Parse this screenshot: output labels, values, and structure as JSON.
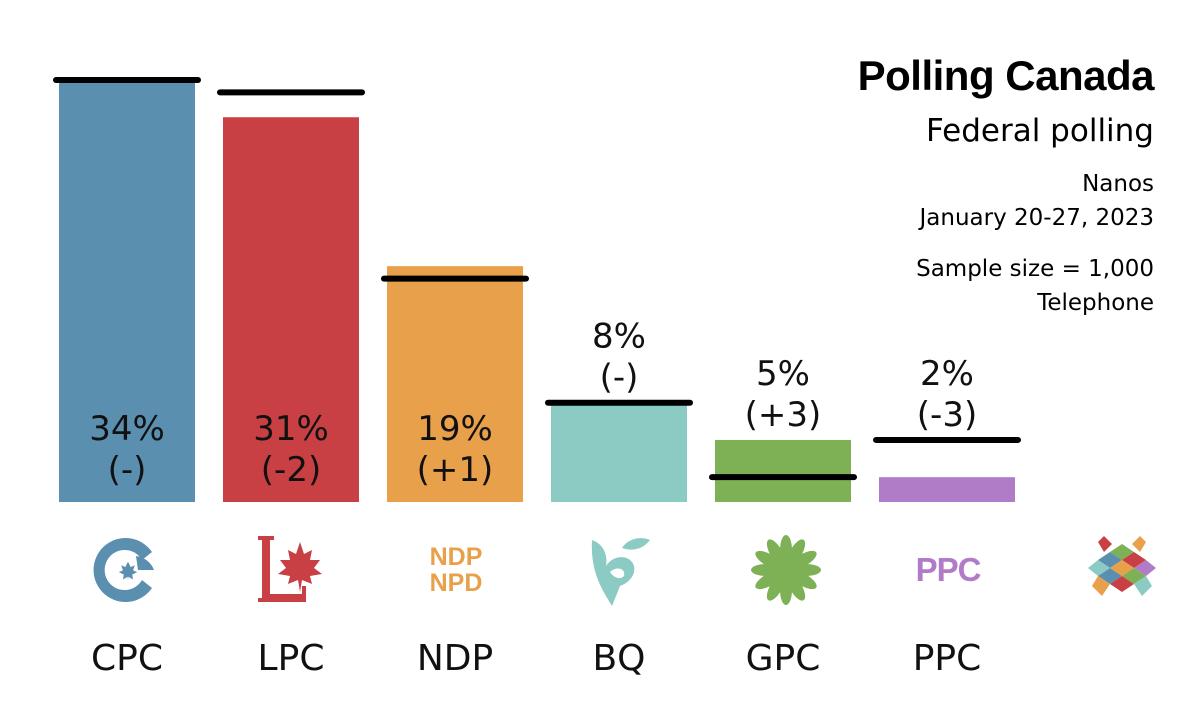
{
  "header": {
    "title": "Polling Canada",
    "subtitle": "Federal polling",
    "pollster": "Nanos",
    "dates": "January 20-27, 2023",
    "sample": "Sample size = 1,000",
    "method": "Telephone"
  },
  "chart_data": {
    "type": "bar",
    "categories": [
      "CPC",
      "LPC",
      "NDP",
      "BQ",
      "GPC",
      "PPC"
    ],
    "values": [
      34,
      31,
      19,
      8,
      5,
      2
    ],
    "previous_values": [
      34,
      33,
      18,
      8,
      2,
      5
    ],
    "change_labels": [
      "(-)",
      "(-2)",
      "(+1)",
      "(-)",
      "(+3)",
      "(-3)"
    ],
    "value_labels": [
      "34%",
      "31%",
      "19%",
      "8%",
      "5%",
      "2%"
    ],
    "colors": [
      "#5a8fb0",
      "#c94044",
      "#e8a04b",
      "#8ccbc3",
      "#7eb055",
      "#b07cc8"
    ],
    "ylim": [
      0,
      34
    ],
    "grid": false,
    "legend": "none"
  },
  "logos": {
    "ndp_line1": "NDP",
    "ndp_line2": "NPD",
    "ppc": "PPC",
    "icons": [
      "cpc-logo-icon",
      "lpc-logo-icon",
      "ndp-logo-icon",
      "bq-logo-icon",
      "gpc-logo-icon",
      "ppc-logo-icon",
      "polling-canada-logo-icon"
    ]
  }
}
